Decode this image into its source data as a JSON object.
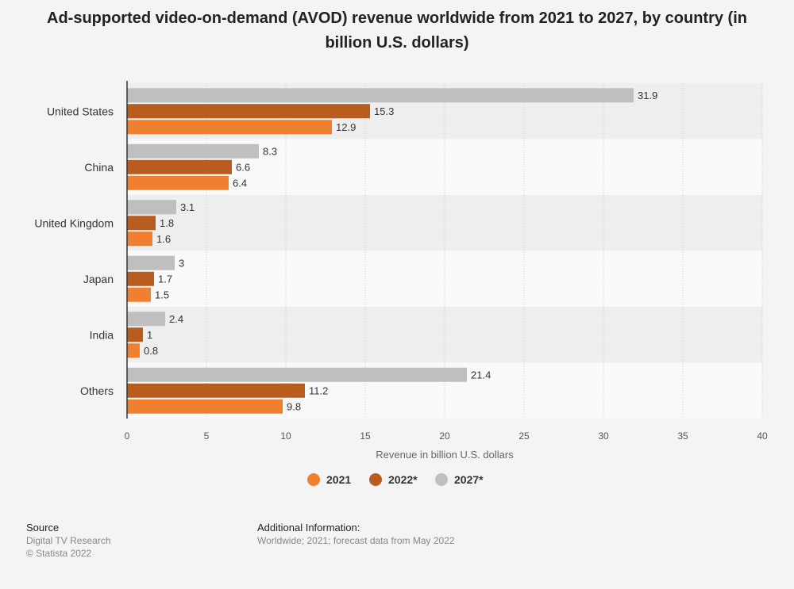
{
  "chart_data": {
    "type": "bar",
    "orientation": "horizontal",
    "title": "Ad-supported video-on-demand (AVOD) revenue worldwide from 2021 to 2027, by country (in billion U.S. dollars)",
    "categories": [
      "United States",
      "China",
      "United Kingdom",
      "Japan",
      "India",
      "Others"
    ],
    "series": [
      {
        "name": "2027*",
        "color": "#bfbfbf",
        "values": [
          31.9,
          8.3,
          3.1,
          3,
          2.4,
          21.4
        ]
      },
      {
        "name": "2022*",
        "color": "#b85c1f",
        "values": [
          15.3,
          6.6,
          1.8,
          1.7,
          1,
          11.2
        ]
      },
      {
        "name": "2021",
        "color": "#f08030",
        "values": [
          12.9,
          6.4,
          1.6,
          1.5,
          0.8,
          9.8
        ]
      }
    ],
    "legend_order": [
      "2021",
      "2022*",
      "2027*"
    ],
    "xlabel": "Revenue in billion U.S. dollars",
    "ylabel": "",
    "xlim": [
      0,
      40
    ],
    "xticks": [
      0,
      5,
      10,
      15,
      20,
      25,
      30,
      35,
      40
    ],
    "grid": true,
    "legend_position": "bottom-center"
  },
  "footer": {
    "source_heading": "Source",
    "source_lines": [
      "Digital TV Research",
      "© Statista 2022"
    ],
    "info_heading": "Additional Information:",
    "info_text": "Worldwide; 2021; forecast data from May 2022"
  }
}
